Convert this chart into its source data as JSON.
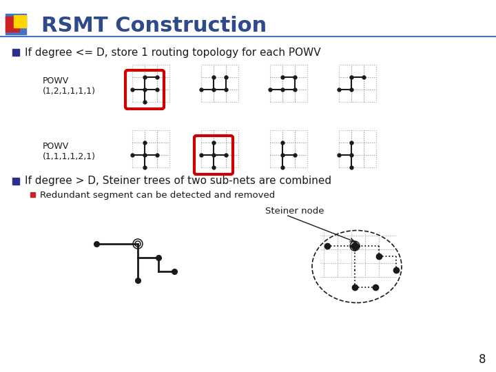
{
  "title": "RSMT Construction",
  "title_color": "#2E4A8B",
  "bg_color": "#FFFFFF",
  "bullet1": "If degree <= D, store 1 routing topology for each POWV",
  "powv1_label": "POWV\n(1,2,1,1,1,1)",
  "powv2_label": "POWV\n(1,1,1,1,2,1)",
  "bullet2": "If degree > D, Steiner trees of two sub-nets are combined",
  "sub_bullet": "Redundant segment can be detected and removed",
  "steiner_label": "Steiner node",
  "page_num": "8",
  "red_color": "#CC0000",
  "dark_color": "#1A1A1A",
  "grid_color": "#AAAAAA",
  "blue_color": "#2E2E8B",
  "yellow_color": "#FFD700",
  "deco_blue": "#4472C4"
}
